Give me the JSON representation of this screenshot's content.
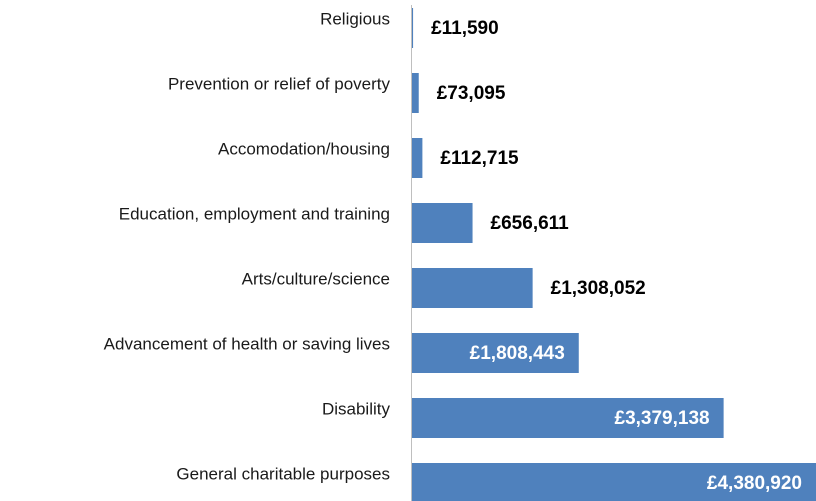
{
  "chart_data": {
    "type": "bar",
    "orientation": "horizontal",
    "color": "#4f81bd",
    "categories": [
      "Religious",
      "Prevention or relief of poverty",
      "Accomodation/housing",
      "Education, employment and training",
      "Arts/culture/science",
      "Advancement of health or saving lives",
      "Disability",
      "General charitable purposes"
    ],
    "values": [
      11590,
      73095,
      112715,
      656611,
      1308052,
      1808443,
      3379138,
      4380920
    ],
    "value_labels": [
      "£11,590",
      "£73,095",
      "£112,715",
      "£656,611",
      "£1,308,052",
      "£1,808,443",
      "£3,379,138",
      "£4,380,920"
    ]
  }
}
